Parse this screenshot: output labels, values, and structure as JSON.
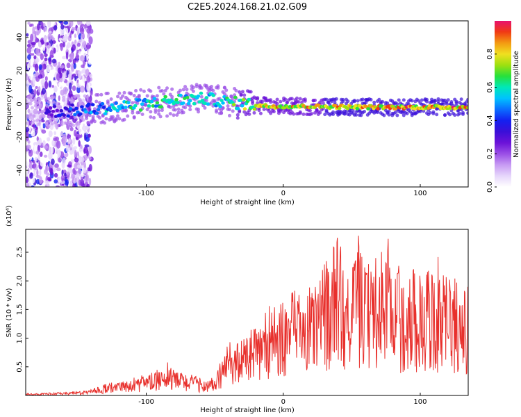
{
  "title": "C2E5.2024.168.21.02.G09",
  "colors": {
    "snr_line": "#e8302c",
    "colormap": [
      "#ffffff",
      "#e6d6fb",
      "#c79af3",
      "#9a4ee6",
      "#6b12d8",
      "#3b0fd8",
      "#1420f0",
      "#0a6cff",
      "#00c2ff",
      "#00e8b8",
      "#26e03c",
      "#9ee010",
      "#f0e020",
      "#f39a12",
      "#f03a14",
      "#e8126e"
    ]
  },
  "chart_data": [
    {
      "type": "heatmap",
      "title": "C2E5.2024.168.21.02.G09",
      "xlabel": "Height of straight line (km)",
      "ylabel": "Frequency (Hz)",
      "xlim": [
        -188,
        135
      ],
      "ylim": [
        -50,
        50
      ],
      "x_ticks": [
        -100,
        0,
        100
      ],
      "y_ticks": [
        -40,
        -20,
        0,
        20,
        40
      ],
      "colorbar": {
        "label": "Normalized spectral amplitude",
        "range": [
          0.0,
          1.0
        ],
        "ticks": [
          0.0,
          0.2,
          0.4,
          0.6,
          0.8
        ]
      },
      "ridge": [
        {
          "x": -170,
          "freq": -4.5,
          "strength": 0.3
        },
        {
          "x": -150,
          "freq": -4.0,
          "strength": 0.45
        },
        {
          "x": -130,
          "freq": -2.5,
          "strength": 0.55
        },
        {
          "x": -110,
          "freq": -1.0,
          "strength": 0.6
        },
        {
          "x": -90,
          "freq": 1.0,
          "strength": 0.62
        },
        {
          "x": -70,
          "freq": 3.0,
          "strength": 0.62
        },
        {
          "x": -55,
          "freq": 3.0,
          "strength": 0.58
        },
        {
          "x": -40,
          "freq": 1.0,
          "strength": 0.62
        },
        {
          "x": -28,
          "freq": 0.0,
          "strength": 0.72
        },
        {
          "x": -10,
          "freq": -1.5,
          "strength": 0.85
        },
        {
          "x": 20,
          "freq": -1.5,
          "strength": 0.85
        },
        {
          "x": 60,
          "freq": -2.0,
          "strength": 0.88
        },
        {
          "x": 100,
          "freq": -2.0,
          "strength": 0.9
        },
        {
          "x": 135,
          "freq": -2.0,
          "strength": 0.9
        }
      ],
      "scatter_region": {
        "x_from": -188,
        "x_to": -140,
        "strength": 0.35
      }
    },
    {
      "type": "line",
      "xlabel": "Height of straight line (km)",
      "ylabel": "SNR (10 * v/v)",
      "y_multiplier": "(x10⁴)",
      "xlim": [
        -188,
        135
      ],
      "ylim": [
        0,
        2.9
      ],
      "x_ticks": [
        -100,
        0,
        100
      ],
      "y_ticks": [
        0.5,
        1.0,
        1.5,
        2.0,
        2.5
      ],
      "y_tick_labels": [
        "0.5",
        "1.0",
        "1.5",
        "2.0",
        "2.5"
      ],
      "series": [
        {
          "x": [
            -188,
            -180,
            -170,
            -160,
            -150,
            -140,
            -130,
            -120,
            -110,
            -100,
            -90,
            -85,
            -80,
            -70,
            -60,
            -50,
            -45,
            -40,
            -35,
            -30,
            -25,
            -20,
            -15,
            -10,
            -5,
            0,
            5,
            10,
            15,
            20,
            25,
            30,
            35,
            40,
            45,
            50,
            55,
            60,
            65,
            70,
            75,
            80,
            85,
            90,
            95,
            100,
            105,
            110,
            115,
            120,
            125,
            130,
            135
          ],
          "y": [
            0.02,
            0.02,
            0.03,
            0.03,
            0.04,
            0.06,
            0.12,
            0.13,
            0.16,
            0.2,
            0.28,
            0.38,
            0.26,
            0.23,
            0.18,
            0.16,
            0.4,
            0.55,
            0.55,
            0.58,
            0.66,
            0.72,
            0.8,
            0.95,
            0.9,
            1.0,
            1.08,
            1.1,
            1.1,
            1.15,
            1.2,
            1.35,
            1.5,
            1.65,
            1.45,
            1.4,
            1.55,
            1.35,
            1.4,
            1.35,
            1.6,
            1.25,
            1.3,
            1.25,
            1.35,
            1.2,
            1.3,
            1.25,
            1.3,
            1.15,
            1.2,
            1.1,
            1.2
          ]
        }
      ]
    }
  ]
}
